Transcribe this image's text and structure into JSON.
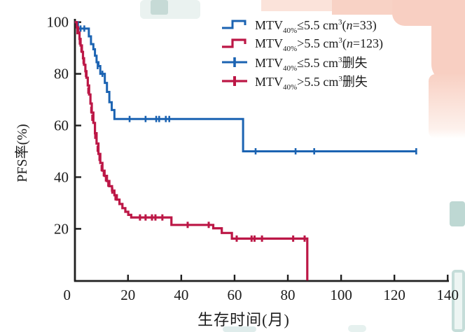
{
  "colors": {
    "blue": "#1b63b2",
    "red": "#bc1746",
    "axis": "#1f1f1f",
    "text": "#1c1c1c"
  },
  "chart_data": {
    "type": "line",
    "subtype": "kaplan-meier-step",
    "title": "",
    "xlabel": "生存时间(月)",
    "ylabel": "PFS率(%)",
    "xlim": [
      0,
      140
    ],
    "ylim": [
      0,
      100
    ],
    "xticks": [
      0,
      20,
      40,
      60,
      80,
      100,
      120,
      140
    ],
    "yticks": [
      20,
      40,
      60,
      80,
      100
    ],
    "grid": false,
    "legend_position": "upper-right",
    "series": [
      {
        "name": "MTV40%≤5.5 cm3(n=33)",
        "color": "#1b63b2",
        "stroke_width": 3,
        "points": [
          [
            0,
            100
          ],
          [
            1.2,
            97.5
          ],
          [
            5.3,
            94.5
          ],
          [
            6.1,
            91.5
          ],
          [
            7,
            89.5
          ],
          [
            7.6,
            87
          ],
          [
            8.2,
            84.5
          ],
          [
            8.9,
            83
          ],
          [
            9.6,
            80
          ],
          [
            11.3,
            76.5
          ],
          [
            12.1,
            73
          ],
          [
            13,
            69
          ],
          [
            13.9,
            66
          ],
          [
            14.9,
            62.5
          ],
          [
            63.2,
            50
          ],
          [
            128.4,
            50
          ]
        ],
        "censors": [
          [
            2.2,
            97.5
          ],
          [
            3.6,
            97.5
          ],
          [
            8.6,
            83
          ],
          [
            10.4,
            80
          ],
          [
            20.6,
            62.5
          ],
          [
            26.6,
            62.5
          ],
          [
            30.6,
            62.5
          ],
          [
            31.7,
            62.5
          ],
          [
            34.2,
            62.5
          ],
          [
            35.5,
            62.5
          ],
          [
            67.9,
            50
          ],
          [
            82.9,
            50
          ],
          [
            89.9,
            50
          ],
          [
            128.2,
            50
          ]
        ]
      },
      {
        "name": "MTV40%>5.5 cm3(n=123)",
        "color": "#bc1746",
        "stroke_width": 3.2,
        "points": [
          [
            0,
            100
          ],
          [
            0.8,
            98
          ],
          [
            1.3,
            96
          ],
          [
            1.8,
            93.5
          ],
          [
            2.2,
            91
          ],
          [
            2.7,
            88.5
          ],
          [
            3.1,
            86
          ],
          [
            3.5,
            83.5
          ],
          [
            4,
            81
          ],
          [
            4.4,
            78.5
          ],
          [
            4.9,
            75.5
          ],
          [
            5.4,
            72
          ],
          [
            5.9,
            68.5
          ],
          [
            6.4,
            65
          ],
          [
            7,
            61
          ],
          [
            7.6,
            57
          ],
          [
            8.2,
            53
          ],
          [
            8.9,
            49
          ],
          [
            9.6,
            45.5
          ],
          [
            10.4,
            42.5
          ],
          [
            11.2,
            40.5
          ],
          [
            12.1,
            38.5
          ],
          [
            13,
            36.5
          ],
          [
            14,
            34.8
          ],
          [
            14.9,
            33
          ],
          [
            15.8,
            31.3
          ],
          [
            16.8,
            29.6
          ],
          [
            17.9,
            28
          ],
          [
            19,
            26.6
          ],
          [
            20.1,
            25.4
          ],
          [
            21.2,
            24.4
          ],
          [
            36.3,
            21.5
          ],
          [
            52,
            20.2
          ],
          [
            55.2,
            18.4
          ],
          [
            59,
            16.2
          ],
          [
            87.3,
            0
          ]
        ],
        "censors": [
          [
            1,
            96.5
          ],
          [
            1.9,
            92.5
          ],
          [
            2.5,
            89.5
          ],
          [
            3.3,
            85
          ],
          [
            4.2,
            80
          ],
          [
            5.1,
            73.5
          ],
          [
            6.2,
            66
          ],
          [
            6.6,
            63
          ],
          [
            7.7,
            56
          ],
          [
            8.6,
            51
          ],
          [
            9.3,
            47.5
          ],
          [
            10.1,
            43.5
          ],
          [
            10.9,
            41.5
          ],
          [
            11.7,
            39.5
          ],
          [
            12.6,
            37.5
          ],
          [
            14.1,
            34.8
          ],
          [
            15.3,
            32.2
          ],
          [
            24.5,
            24.4
          ],
          [
            26.6,
            24.4
          ],
          [
            29,
            24.4
          ],
          [
            30.3,
            24.4
          ],
          [
            32.9,
            24.4
          ],
          [
            42.4,
            21.5
          ],
          [
            50.3,
            21.5
          ],
          [
            60.8,
            16.2
          ],
          [
            66.4,
            16.2
          ],
          [
            67.5,
            16.2
          ],
          [
            70.3,
            16.2
          ],
          [
            82,
            16.2
          ],
          [
            86.3,
            16.2
          ]
        ]
      }
    ]
  },
  "legend": {
    "items": [
      {
        "mtv": "MTV",
        "sub": "40%",
        "rel": "≤5.5 cm",
        "sup": "3",
        "tail_open": "(",
        "tail_var": "n",
        "tail_rest": "=33)",
        "color": "#1b63b2",
        "marker": "step"
      },
      {
        "mtv": "MTV",
        "sub": "40%",
        "rel": ">5.5 cm",
        "sup": "3",
        "tail_open": "(",
        "tail_var": "n",
        "tail_rest": "=123)",
        "color": "#bc1746",
        "marker": "step"
      },
      {
        "mtv": "MTV",
        "sub": "40%",
        "rel": "≤5.5 cm",
        "sup": "3",
        "tail_open": "删失",
        "tail_var": "",
        "tail_rest": "",
        "color": "#1b63b2",
        "marker": "censor"
      },
      {
        "mtv": "MTV",
        "sub": "40%",
        "rel": ">5.5 cm",
        "sup": "3",
        "tail_open": "删失",
        "tail_var": "",
        "tail_rest": "",
        "color": "#bc1746",
        "marker": "censor"
      }
    ]
  }
}
